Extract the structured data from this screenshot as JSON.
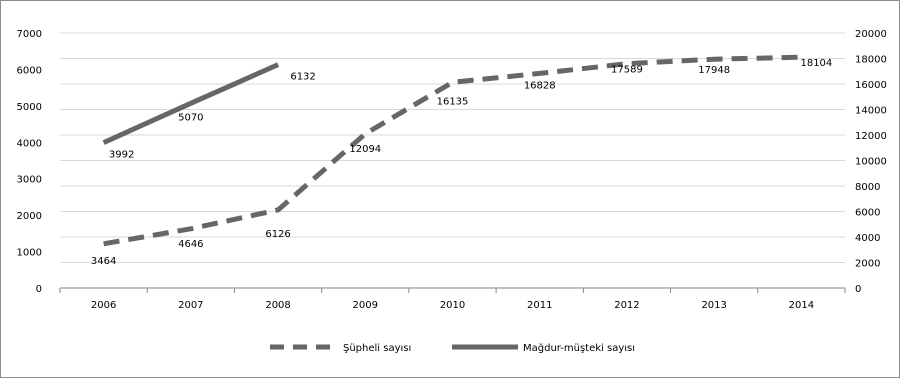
{
  "chart_data": {
    "type": "line",
    "title": "",
    "xlabel": "",
    "ylabel": "",
    "categories": [
      "2006",
      "2007",
      "2008",
      "2009",
      "2010",
      "2011",
      "2012",
      "2013",
      "2014"
    ],
    "ylim_left": [
      0,
      7000
    ],
    "yticks_left": [
      0,
      1000,
      2000,
      3000,
      4000,
      5000,
      6000,
      7000
    ],
    "ylim_right": [
      0,
      20000
    ],
    "yticks_right": [
      0,
      2000,
      4000,
      6000,
      8000,
      10000,
      12000,
      14000,
      16000,
      18000,
      20000
    ],
    "grid": "horizontal",
    "legend_position": "bottom",
    "series": [
      {
        "name": "Şüpheli sayısı",
        "axis": "right",
        "style": "dashed",
        "color": "#666666",
        "values": [
          3464,
          4646,
          6126,
          12094,
          16135,
          16828,
          17589,
          17948,
          18104
        ]
      },
      {
        "name": "Mağdur-müşteki sayısı",
        "axis": "left",
        "style": "solid",
        "color": "#666666",
        "values": [
          3992,
          5070,
          6132,
          null,
          null,
          null,
          null,
          null,
          null
        ]
      }
    ]
  }
}
